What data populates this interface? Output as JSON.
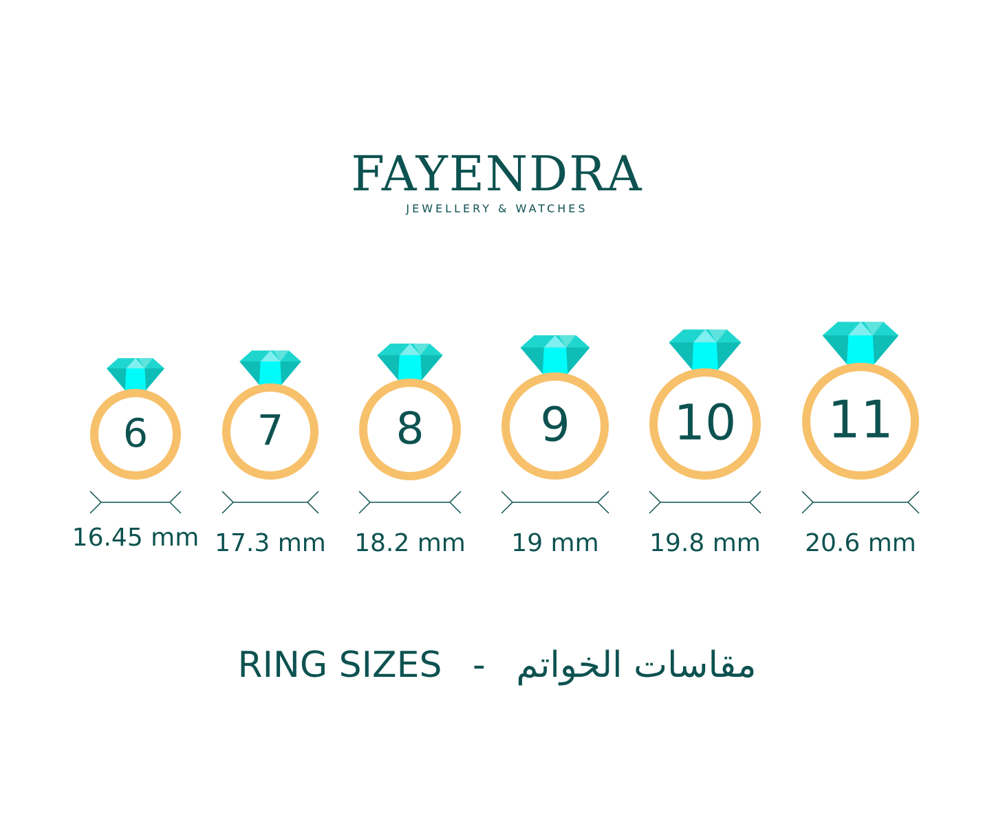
{
  "brand": {
    "name": "FAYENDRA",
    "tagline": "JEWELLERY & WATCHES"
  },
  "colors": {
    "text": "#0d5250",
    "ring": "#f7c06a",
    "gem_light": "#7fefef",
    "gem_mid": "#1fd6cf",
    "gem_dark": "#0ebdb6",
    "gem_bright": "#00fbfb"
  },
  "rings": [
    {
      "size": "6",
      "diameter": "16.45 mm"
    },
    {
      "size": "7",
      "diameter": "17.3 mm"
    },
    {
      "size": "8",
      "diameter": "18.2 mm"
    },
    {
      "size": "9",
      "diameter": "19 mm"
    },
    {
      "size": "10",
      "diameter": "19.8 mm"
    },
    {
      "size": "11",
      "diameter": "20.6 mm"
    }
  ],
  "footer": {
    "title_en": "RING SIZES",
    "separator": "-",
    "title_ar": "مقاسات الخواتم"
  }
}
